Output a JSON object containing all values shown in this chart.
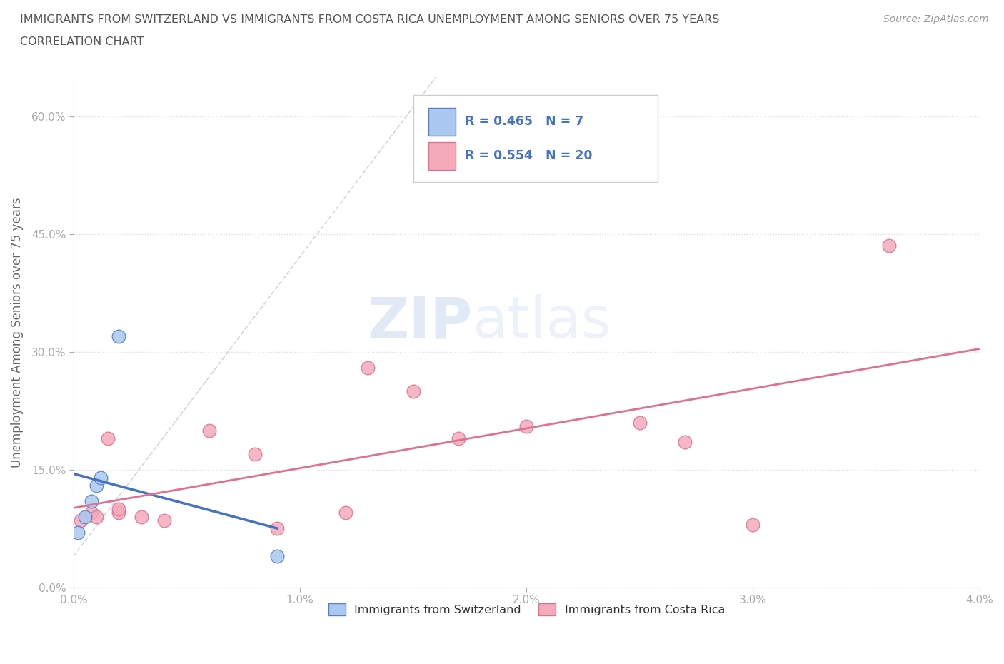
{
  "title_line1": "IMMIGRANTS FROM SWITZERLAND VS IMMIGRANTS FROM COSTA RICA UNEMPLOYMENT AMONG SENIORS OVER 75 YEARS",
  "title_line2": "CORRELATION CHART",
  "source": "Source: ZipAtlas.com",
  "ylabel": "Unemployment Among Seniors over 75 years",
  "xlim": [
    0.0,
    0.04
  ],
  "ylim": [
    0.0,
    0.65
  ],
  "xticks": [
    0.0,
    0.01,
    0.02,
    0.03,
    0.04
  ],
  "xtick_labels": [
    "0.0%",
    "1.0%",
    "2.0%",
    "3.0%",
    "4.0%"
  ],
  "yticks": [
    0.0,
    0.15,
    0.3,
    0.45,
    0.6
  ],
  "ytick_labels": [
    "0.0%",
    "15.0%",
    "30.0%",
    "45.0%",
    "60.0%"
  ],
  "switzerland_scatter_x": [
    0.0002,
    0.0005,
    0.0008,
    0.001,
    0.0012,
    0.002,
    0.009
  ],
  "switzerland_scatter_y": [
    0.07,
    0.09,
    0.11,
    0.13,
    0.14,
    0.32,
    0.04
  ],
  "costarica_scatter_x": [
    0.0003,
    0.0008,
    0.001,
    0.0015,
    0.002,
    0.002,
    0.003,
    0.004,
    0.006,
    0.008,
    0.009,
    0.012,
    0.013,
    0.015,
    0.017,
    0.02,
    0.025,
    0.027,
    0.03,
    0.036
  ],
  "costarica_scatter_y": [
    0.085,
    0.095,
    0.09,
    0.19,
    0.095,
    0.1,
    0.09,
    0.085,
    0.2,
    0.17,
    0.075,
    0.095,
    0.28,
    0.25,
    0.19,
    0.205,
    0.21,
    0.185,
    0.08,
    0.435
  ],
  "switzerland_color": "#aac8f0",
  "costarica_color": "#f4aabb",
  "switzerland_dot_edge": "#5580cc",
  "costarica_dot_edge": "#e07090",
  "switzerland_line_color": "#4472c4",
  "costarica_line_color": "#e07090",
  "diagonal_color": "#c8d0e0",
  "R_switzerland": 0.465,
  "N_switzerland": 7,
  "R_costarica": 0.554,
  "N_costarica": 20,
  "watermark_part1": "ZIP",
  "watermark_part2": "atlas",
  "background_color": "#ffffff",
  "grid_color": "#dddddd",
  "title_color": "#555555",
  "axis_label_color": "#666666",
  "tick_color": "#888888",
  "legend_text_color": "#333333",
  "legend_r_color": "#4472c4"
}
